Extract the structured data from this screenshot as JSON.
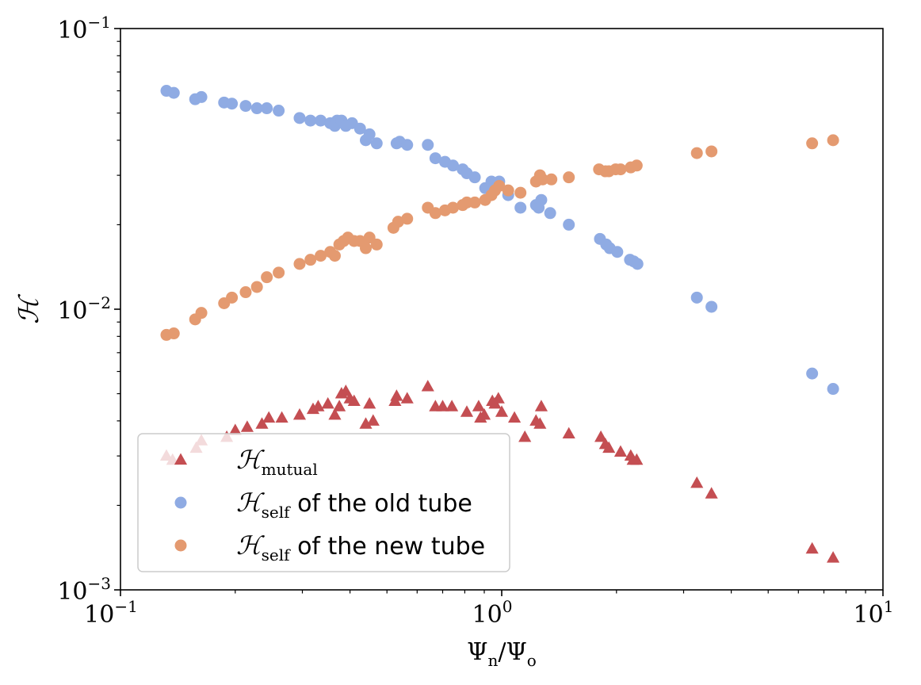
{
  "chart_data": {
    "type": "scatter",
    "title": "",
    "xlabel": "Ψn/Ψo",
    "ylabel": "ℋ",
    "xscale": "log",
    "yscale": "log",
    "xlim": [
      0.1,
      10
    ],
    "ylim": [
      0.001,
      0.1
    ],
    "xticks": [
      {
        "base": "10",
        "exp": "−1",
        "value": 0.1
      },
      {
        "base": "10",
        "exp": "0",
        "value": 1
      },
      {
        "base": "10",
        "exp": "1",
        "value": 10
      }
    ],
    "yticks": [
      {
        "base": "10",
        "exp": "−3",
        "value": 0.001
      },
      {
        "base": "10",
        "exp": "−2",
        "value": 0.01
      },
      {
        "base": "10",
        "exp": "−1",
        "value": 0.1
      }
    ],
    "grid": false,
    "legend_position": "lower-left",
    "series": [
      {
        "key": "mutual",
        "name": "ℋmutual",
        "legend_main": "ℋ",
        "legend_sub": "mutual",
        "legend_rest": "",
        "marker": "triangle",
        "color": "#c44e52",
        "points": [
          [
            0.132,
            0.003
          ],
          [
            0.137,
            0.0029
          ],
          [
            0.158,
            0.0032
          ],
          [
            0.163,
            0.0034
          ],
          [
            0.19,
            0.0035
          ],
          [
            0.2,
            0.0037
          ],
          [
            0.215,
            0.0038
          ],
          [
            0.235,
            0.0039
          ],
          [
            0.245,
            0.0041
          ],
          [
            0.265,
            0.0041
          ],
          [
            0.295,
            0.0042
          ],
          [
            0.32,
            0.0044
          ],
          [
            0.33,
            0.0045
          ],
          [
            0.35,
            0.0046
          ],
          [
            0.365,
            0.0042
          ],
          [
            0.375,
            0.0045
          ],
          [
            0.38,
            0.005
          ],
          [
            0.39,
            0.0051
          ],
          [
            0.4,
            0.0048
          ],
          [
            0.41,
            0.0047
          ],
          [
            0.44,
            0.0039
          ],
          [
            0.45,
            0.0046
          ],
          [
            0.46,
            0.004
          ],
          [
            0.525,
            0.0047
          ],
          [
            0.53,
            0.0049
          ],
          [
            0.565,
            0.0048
          ],
          [
            0.64,
            0.0053
          ],
          [
            0.67,
            0.0045
          ],
          [
            0.7,
            0.0045
          ],
          [
            0.74,
            0.0045
          ],
          [
            0.81,
            0.0043
          ],
          [
            0.87,
            0.0045
          ],
          [
            0.88,
            0.0041
          ],
          [
            0.9,
            0.0042
          ],
          [
            0.945,
            0.0047
          ],
          [
            0.96,
            0.0046
          ],
          [
            0.98,
            0.0048
          ],
          [
            1.0,
            0.0043
          ],
          [
            1.08,
            0.0041
          ],
          [
            1.15,
            0.0035
          ],
          [
            1.23,
            0.004
          ],
          [
            1.26,
            0.0039
          ],
          [
            1.27,
            0.0045
          ],
          [
            1.5,
            0.0036
          ],
          [
            1.82,
            0.0035
          ],
          [
            1.87,
            0.0033
          ],
          [
            1.91,
            0.0032
          ],
          [
            2.05,
            0.0031
          ],
          [
            2.18,
            0.003
          ],
          [
            2.21,
            0.0029
          ],
          [
            2.26,
            0.0029
          ],
          [
            3.25,
            0.0024
          ],
          [
            3.55,
            0.0022
          ],
          [
            6.52,
            0.0014
          ],
          [
            7.4,
            0.0013
          ]
        ]
      },
      {
        "key": "self_old",
        "name": "ℋself of the old tube",
        "legend_main": "ℋ",
        "legend_sub": "self",
        "legend_rest": " of the old tube",
        "marker": "circle",
        "color": "#8fabe3",
        "points": [
          [
            0.132,
            0.06
          ],
          [
            0.138,
            0.059
          ],
          [
            0.157,
            0.056
          ],
          [
            0.163,
            0.057
          ],
          [
            0.187,
            0.0545
          ],
          [
            0.196,
            0.054
          ],
          [
            0.213,
            0.053
          ],
          [
            0.228,
            0.052
          ],
          [
            0.242,
            0.052
          ],
          [
            0.26,
            0.051
          ],
          [
            0.295,
            0.048
          ],
          [
            0.315,
            0.047
          ],
          [
            0.335,
            0.047
          ],
          [
            0.355,
            0.046
          ],
          [
            0.365,
            0.045
          ],
          [
            0.37,
            0.047
          ],
          [
            0.38,
            0.047
          ],
          [
            0.39,
            0.045
          ],
          [
            0.405,
            0.046
          ],
          [
            0.425,
            0.044
          ],
          [
            0.44,
            0.04
          ],
          [
            0.45,
            0.042
          ],
          [
            0.47,
            0.039
          ],
          [
            0.53,
            0.039
          ],
          [
            0.54,
            0.0395
          ],
          [
            0.565,
            0.0385
          ],
          [
            0.64,
            0.0385
          ],
          [
            0.67,
            0.0345
          ],
          [
            0.71,
            0.0335
          ],
          [
            0.745,
            0.0325
          ],
          [
            0.79,
            0.0315
          ],
          [
            0.81,
            0.0305
          ],
          [
            0.85,
            0.0295
          ],
          [
            0.905,
            0.027
          ],
          [
            0.94,
            0.0285
          ],
          [
            0.955,
            0.028
          ],
          [
            0.985,
            0.0285
          ],
          [
            1.04,
            0.0255
          ],
          [
            1.12,
            0.023
          ],
          [
            1.23,
            0.0235
          ],
          [
            1.25,
            0.023
          ],
          [
            1.27,
            0.0245
          ],
          [
            1.34,
            0.022
          ],
          [
            1.5,
            0.02
          ],
          [
            1.81,
            0.0178
          ],
          [
            1.88,
            0.017
          ],
          [
            1.92,
            0.0165
          ],
          [
            2.01,
            0.016
          ],
          [
            2.17,
            0.015
          ],
          [
            2.22,
            0.0148
          ],
          [
            2.27,
            0.0145
          ],
          [
            3.25,
            0.011
          ],
          [
            3.55,
            0.0102
          ],
          [
            6.52,
            0.0059
          ],
          [
            7.4,
            0.0052
          ]
        ]
      },
      {
        "key": "self_new",
        "name": "ℋself of the new tube",
        "legend_main": "ℋ",
        "legend_sub": "self",
        "legend_rest": " of the new tube",
        "marker": "circle",
        "color": "#e49a70",
        "points": [
          [
            0.132,
            0.0081
          ],
          [
            0.138,
            0.0082
          ],
          [
            0.157,
            0.0092
          ],
          [
            0.163,
            0.0097
          ],
          [
            0.187,
            0.0105
          ],
          [
            0.196,
            0.011
          ],
          [
            0.213,
            0.0115
          ],
          [
            0.228,
            0.012
          ],
          [
            0.242,
            0.013
          ],
          [
            0.26,
            0.0135
          ],
          [
            0.295,
            0.0145
          ],
          [
            0.315,
            0.015
          ],
          [
            0.335,
            0.0155
          ],
          [
            0.355,
            0.016
          ],
          [
            0.365,
            0.0155
          ],
          [
            0.375,
            0.017
          ],
          [
            0.385,
            0.0175
          ],
          [
            0.395,
            0.018
          ],
          [
            0.41,
            0.0175
          ],
          [
            0.425,
            0.0175
          ],
          [
            0.44,
            0.0165
          ],
          [
            0.45,
            0.018
          ],
          [
            0.47,
            0.017
          ],
          [
            0.52,
            0.0195
          ],
          [
            0.535,
            0.0205
          ],
          [
            0.565,
            0.021
          ],
          [
            0.64,
            0.023
          ],
          [
            0.67,
            0.022
          ],
          [
            0.71,
            0.0225
          ],
          [
            0.745,
            0.023
          ],
          [
            0.79,
            0.0235
          ],
          [
            0.81,
            0.024
          ],
          [
            0.85,
            0.024
          ],
          [
            0.905,
            0.0245
          ],
          [
            0.94,
            0.0255
          ],
          [
            0.96,
            0.0265
          ],
          [
            0.985,
            0.0275
          ],
          [
            1.04,
            0.0265
          ],
          [
            1.12,
            0.026
          ],
          [
            1.23,
            0.0285
          ],
          [
            1.26,
            0.03
          ],
          [
            1.28,
            0.029
          ],
          [
            1.35,
            0.029
          ],
          [
            1.5,
            0.0295
          ],
          [
            1.8,
            0.0315
          ],
          [
            1.87,
            0.031
          ],
          [
            1.91,
            0.031
          ],
          [
            1.99,
            0.0315
          ],
          [
            2.05,
            0.0315
          ],
          [
            2.18,
            0.032
          ],
          [
            2.26,
            0.0325
          ],
          [
            3.25,
            0.036
          ],
          [
            3.55,
            0.0365
          ],
          [
            6.52,
            0.039
          ],
          [
            7.4,
            0.04
          ]
        ]
      }
    ]
  }
}
